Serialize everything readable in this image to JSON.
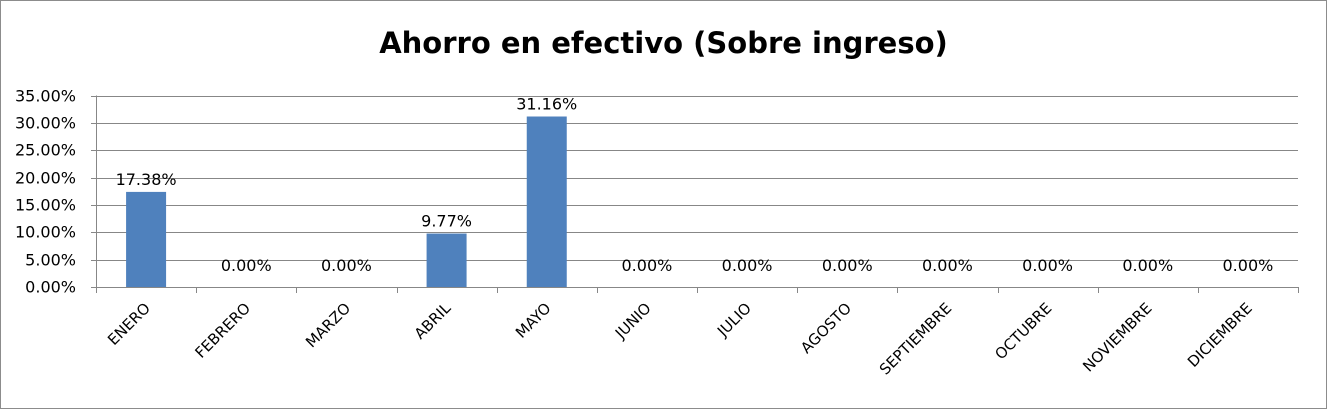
{
  "chart_data": {
    "type": "bar",
    "title": "Ahorro en efectivo (Sobre ingreso)",
    "xlabel": "",
    "ylabel": "",
    "categories": [
      "ENERO",
      "FEBRERO",
      "MARZO",
      "ABRIL",
      "MAYO",
      "JUNIO",
      "JULIO",
      "AGOSTO",
      "SEPTIEMBRE",
      "OCTUBRE",
      "NOVIEMBRE",
      "DICIEMBRE"
    ],
    "values": [
      17.38,
      0,
      0,
      9.77,
      31.16,
      0,
      0,
      0,
      0,
      0,
      0,
      0
    ],
    "data_labels": [
      "17.38%",
      "0.00%",
      "0.00%",
      "9.77%",
      "31.16%",
      "0.00%",
      "0.00%",
      "0.00%",
      "0.00%",
      "0.00%",
      "0.00%",
      "0.00%"
    ],
    "ylim": [
      0,
      35
    ],
    "yticks": [
      0,
      5,
      10,
      15,
      20,
      25,
      30,
      35
    ],
    "ytick_labels": [
      "0.00%",
      "5.00%",
      "10.00%",
      "15.00%",
      "20.00%",
      "25.00%",
      "30.00%",
      "35.00%"
    ],
    "grid": true,
    "legend": "none",
    "colors": {
      "bar": "#4f81bd",
      "gridline": "#878787",
      "axis": "#878787",
      "border": "#8c8c8c"
    }
  }
}
